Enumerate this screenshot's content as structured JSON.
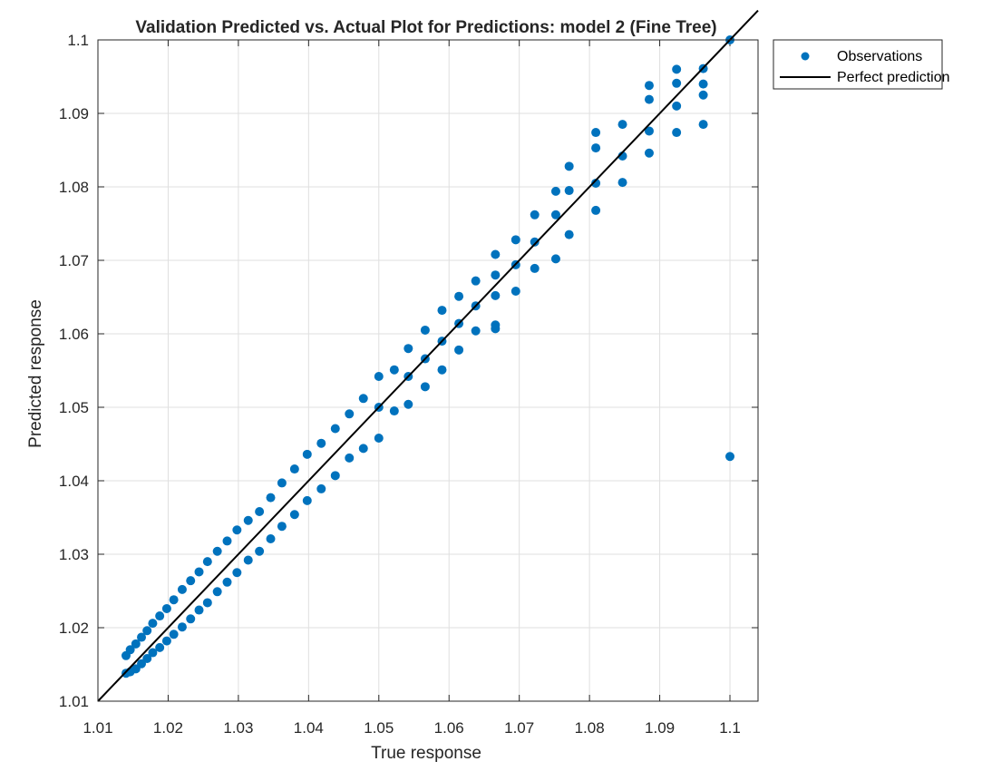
{
  "chart_data": {
    "type": "scatter",
    "title": "Validation Predicted vs. Actual Plot for Predictions: model 2 (Fine Tree)",
    "xlabel": "True response",
    "ylabel": "Predicted response",
    "xlim": [
      1.01,
      1.104
    ],
    "ylim": [
      1.01,
      1.1
    ],
    "xticks": [
      1.01,
      1.02,
      1.03,
      1.04,
      1.05,
      1.06,
      1.07,
      1.08,
      1.09,
      1.1
    ],
    "yticks": [
      1.01,
      1.02,
      1.03,
      1.04,
      1.05,
      1.06,
      1.07,
      1.08,
      1.09,
      1.1
    ],
    "xtick_labels": [
      "1.01",
      "1.02",
      "1.03",
      "1.04",
      "1.05",
      "1.06",
      "1.07",
      "1.08",
      "1.09",
      "1.1"
    ],
    "ytick_labels": [
      "1.01",
      "1.02",
      "1.03",
      "1.04",
      "1.05",
      "1.06",
      "1.07",
      "1.08",
      "1.09",
      "1.1"
    ],
    "grid": true,
    "legend": {
      "placement": "top-right-outside",
      "entries": [
        "Observations",
        "Perfect prediction"
      ]
    },
    "series": [
      {
        "name": "Observations",
        "marker": "circle",
        "color": "#0072BD",
        "x": [
          1.1,
          1.1,
          1.0962,
          1.0962,
          1.0962,
          1.0962,
          1.0924,
          1.0924,
          1.0924,
          1.0924,
          1.0885,
          1.0885,
          1.0885,
          1.0885,
          1.0847,
          1.0847,
          1.0847,
          1.0809,
          1.0809,
          1.0809,
          1.0809,
          1.0771,
          1.0771,
          1.0771,
          1.0752,
          1.0752,
          1.0752,
          1.0722,
          1.0722,
          1.0722,
          1.0695,
          1.0695,
          1.0695,
          1.0666,
          1.0666,
          1.0666,
          1.0666,
          1.0666,
          1.0638,
          1.0638,
          1.0638,
          1.0614,
          1.0614,
          1.0614,
          1.059,
          1.059,
          1.059,
          1.0566,
          1.0566,
          1.0566,
          1.0542,
          1.0542,
          1.0542,
          1.0522,
          1.0522,
          1.05,
          1.05,
          1.05,
          1.0478,
          1.0478,
          1.0458,
          1.0458,
          1.0438,
          1.0438,
          1.0418,
          1.0418,
          1.0398,
          1.0398,
          1.038,
          1.038,
          1.0362,
          1.0362,
          1.0346,
          1.0346,
          1.033,
          1.033,
          1.0314,
          1.0314,
          1.0298,
          1.0298,
          1.0284,
          1.0284,
          1.027,
          1.027,
          1.0256,
          1.0256,
          1.0244,
          1.0244,
          1.0232,
          1.0232,
          1.022,
          1.022,
          1.0208,
          1.0208,
          1.0198,
          1.0198,
          1.0188,
          1.0188,
          1.0178,
          1.0178,
          1.017,
          1.017,
          1.0162,
          1.0162,
          1.0154,
          1.0154,
          1.0146,
          1.0146,
          1.014,
          1.014
        ],
        "y": [
          1.1,
          1.0433,
          1.0961,
          1.094,
          1.0925,
          1.0885,
          1.096,
          1.0941,
          1.091,
          1.0874,
          1.0938,
          1.0919,
          1.0876,
          1.0846,
          1.0885,
          1.0842,
          1.0806,
          1.0874,
          1.0853,
          1.0805,
          1.0768,
          1.0828,
          1.0795,
          1.0735,
          1.0794,
          1.0762,
          1.0702,
          1.0762,
          1.0725,
          1.0689,
          1.0728,
          1.0694,
          1.0658,
          1.0708,
          1.068,
          1.0652,
          1.0612,
          1.0607,
          1.0672,
          1.0638,
          1.0604,
          1.0651,
          1.0614,
          1.0578,
          1.0632,
          1.059,
          1.0551,
          1.0605,
          1.0566,
          1.0528,
          1.058,
          1.0542,
          1.0504,
          1.0551,
          1.0495,
          1.0542,
          1.05,
          1.0458,
          1.0512,
          1.0444,
          1.0491,
          1.0431,
          1.0471,
          1.0407,
          1.0451,
          1.0389,
          1.0436,
          1.0373,
          1.0416,
          1.0354,
          1.0397,
          1.0338,
          1.0377,
          1.0321,
          1.0358,
          1.0304,
          1.0346,
          1.0292,
          1.0333,
          1.0275,
          1.0318,
          1.0262,
          1.0304,
          1.0249,
          1.029,
          1.0234,
          1.0276,
          1.0224,
          1.0264,
          1.0212,
          1.0252,
          1.0201,
          1.0238,
          1.0191,
          1.0226,
          1.0182,
          1.0216,
          1.0173,
          1.0206,
          1.0166,
          1.0196,
          1.0158,
          1.0187,
          1.0151,
          1.0178,
          1.0144,
          1.017,
          1.014,
          1.0162,
          1.0138
        ]
      },
      {
        "name": "Perfect prediction",
        "type": "line",
        "color": "#000000",
        "x": [
          1.01,
          1.104
        ],
        "y": [
          1.01,
          1.104
        ]
      }
    ]
  }
}
